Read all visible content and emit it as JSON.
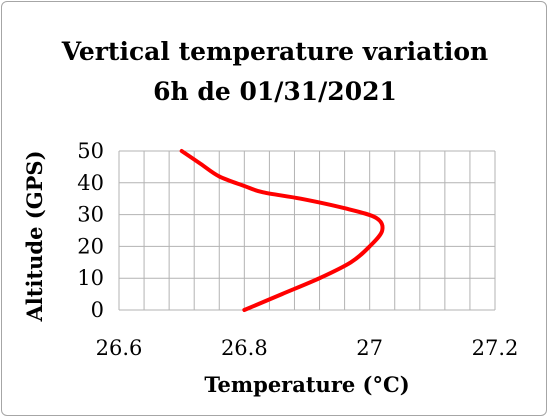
{
  "chart_data": {
    "type": "line",
    "title_lines": [
      "Vertical temperature variation",
      "6h de 01/31/2021"
    ],
    "xlabel": "Temperature (°C)",
    "ylabel": "Altitude (GPS)",
    "xlim": [
      26.6,
      27.2
    ],
    "ylim": [
      0,
      50
    ],
    "x_tick_labels": [
      "26.6",
      "26.8",
      "27",
      "27.2"
    ],
    "y_tick_labels": [
      "0",
      "10",
      "20",
      "30",
      "40",
      "50"
    ],
    "x_ticks": [
      26.6,
      26.8,
      27.0,
      27.2
    ],
    "y_ticks": [
      0,
      10,
      20,
      30,
      40,
      50
    ],
    "x_minor_step": 0.04,
    "y_minor_step": 10,
    "grid": true,
    "series_color": "#ff0000",
    "series": [
      {
        "points": [
          [
            26.8,
            0
          ],
          [
            26.86,
            5
          ],
          [
            26.92,
            10
          ],
          [
            26.97,
            15
          ],
          [
            27.0,
            20
          ],
          [
            27.02,
            25
          ],
          [
            27.01,
            29
          ],
          [
            26.96,
            32
          ],
          [
            26.89,
            35
          ],
          [
            26.83,
            37
          ],
          [
            26.8,
            39
          ],
          [
            26.76,
            42
          ],
          [
            26.73,
            46
          ],
          [
            26.7,
            50
          ]
        ]
      }
    ]
  }
}
